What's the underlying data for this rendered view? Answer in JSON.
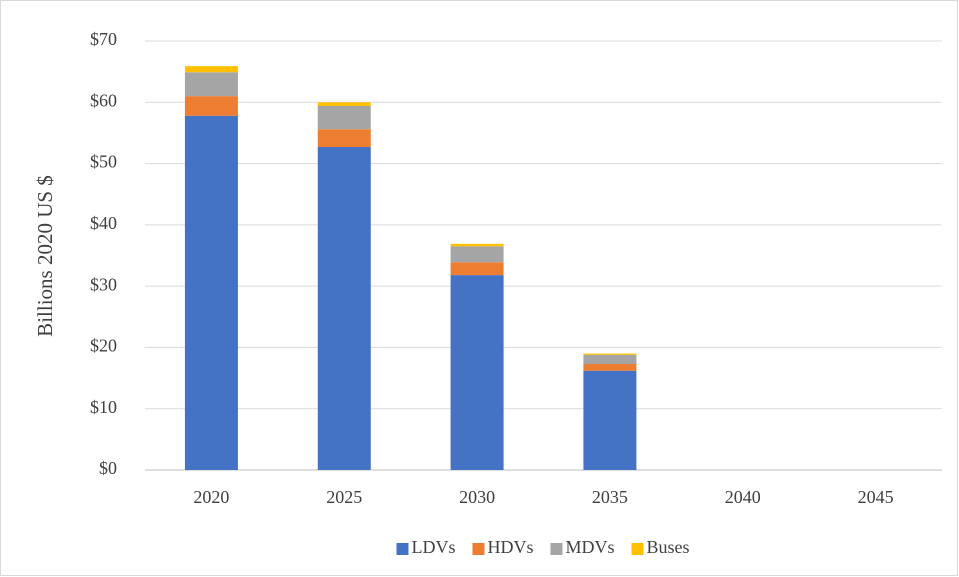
{
  "chart_data": {
    "type": "stacked_bar",
    "y_axis_label": "Billions 2020 US $",
    "categories": [
      "2020",
      "2025",
      "2030",
      "2035",
      "2040",
      "2045"
    ],
    "series": [
      {
        "name": "LDVs",
        "color": "#4472c4",
        "values": [
          57.8,
          52.7,
          31.8,
          16.2,
          0,
          0
        ]
      },
      {
        "name": "HDVs",
        "color": "#ed7d31",
        "values": [
          3.2,
          2.9,
          2.1,
          1.1,
          0,
          0
        ]
      },
      {
        "name": "MDVs",
        "color": "#a5a5a5",
        "values": [
          3.9,
          3.8,
          2.6,
          1.5,
          0,
          0
        ]
      },
      {
        "name": "Buses",
        "color": "#ffc000",
        "values": [
          1.0,
          0.6,
          0.4,
          0.2,
          0,
          0
        ]
      }
    ],
    "ylim": [
      0,
      70
    ],
    "yticks": [
      {
        "value": 0,
        "label": "$0"
      },
      {
        "value": 10,
        "label": "$10"
      },
      {
        "value": 20,
        "label": "$20"
      },
      {
        "value": 30,
        "label": "$30"
      },
      {
        "value": 40,
        "label": "$40"
      },
      {
        "value": 50,
        "label": "$50"
      },
      {
        "value": 60,
        "label": "$60"
      },
      {
        "value": 70,
        "label": "$70"
      }
    ],
    "grid": true,
    "legend": "bottom"
  }
}
